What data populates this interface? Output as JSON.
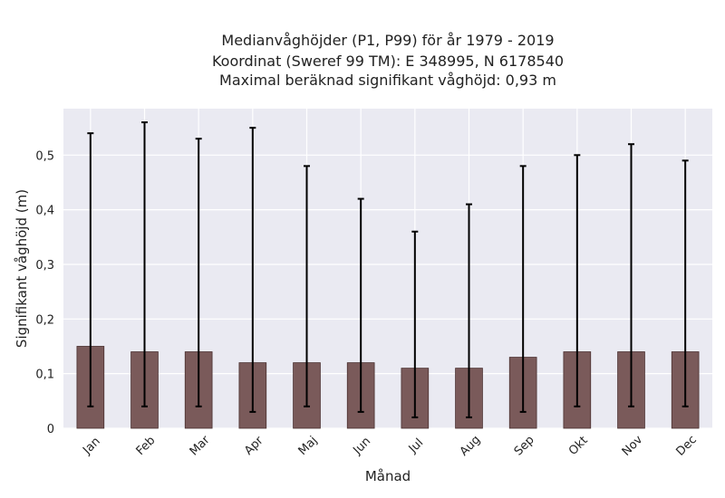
{
  "chart_data": {
    "type": "bar",
    "title_lines": [
      "Medianvåghöjder (P1, P99) för år 1979 - 2019",
      "Koordinat (Sweref 99 TM): E 348995, N 6178540",
      "Maximal beräknad signifikant våghöjd: 0,93 m"
    ],
    "xlabel": "Månad",
    "ylabel": "Signifikant våghöjd (m)",
    "categories": [
      "Jan",
      "Feb",
      "Mar",
      "Apr",
      "Maj",
      "Jun",
      "Jul",
      "Aug",
      "Sep",
      "Okt",
      "Nov",
      "Dec"
    ],
    "values": [
      0.15,
      0.14,
      0.14,
      0.12,
      0.12,
      0.12,
      0.11,
      0.11,
      0.13,
      0.14,
      0.14,
      0.14
    ],
    "p1": [
      0.04,
      0.04,
      0.04,
      0.03,
      0.04,
      0.03,
      0.02,
      0.02,
      0.03,
      0.04,
      0.04,
      0.04
    ],
    "p99": [
      0.54,
      0.56,
      0.53,
      0.55,
      0.48,
      0.42,
      0.36,
      0.41,
      0.48,
      0.5,
      0.52,
      0.49
    ],
    "ylim": [
      0,
      0.585
    ],
    "yticks": [
      0,
      0.1,
      0.2,
      0.3,
      0.4,
      0.5
    ],
    "ytick_labels": [
      "0",
      "0,1",
      "0,2",
      "0,3",
      "0,4",
      "0,5"
    ],
    "grid": true,
    "colors": {
      "bar": "#7a5a5a",
      "bar_edge": "#4a3030",
      "errorbar": "#000000",
      "background": "#eaeaf2",
      "grid": "#ffffff"
    }
  }
}
